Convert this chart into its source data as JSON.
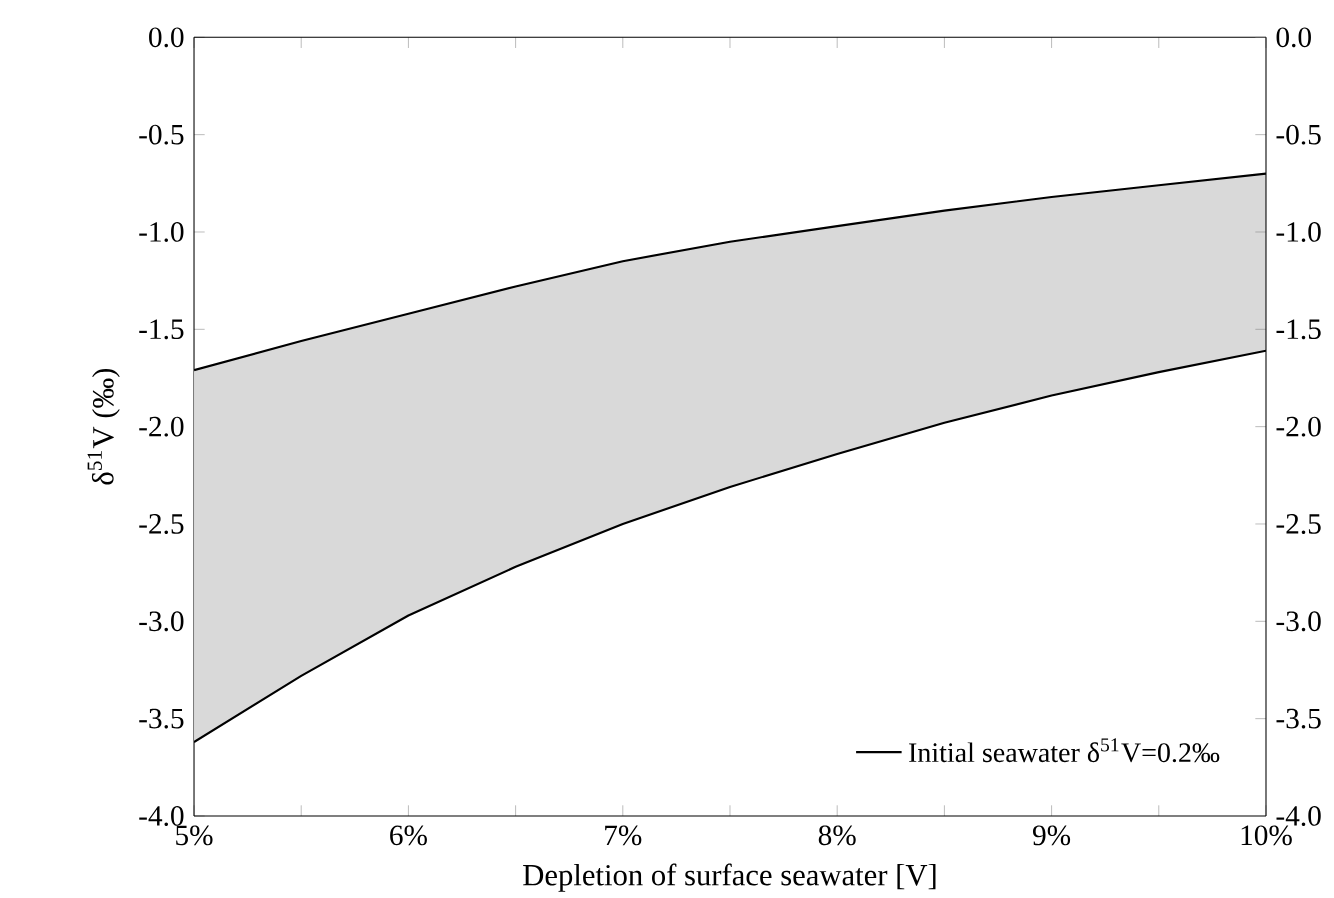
{
  "chart_data": {
    "type": "line",
    "xlabel": "Depletion of surface seawater [V]",
    "ylabel": "δ$^{51}$V (‰)",
    "x": [
      5,
      5.5,
      6,
      6.5,
      7,
      7.5,
      8,
      8.5,
      9,
      9.5,
      10
    ],
    "series": [
      {
        "name": "Initial seawater δ$^{51}$V=0.2‰",
        "color": "#000000",
        "values": [
          -1.71,
          -1.56,
          -1.42,
          -1.28,
          -1.15,
          -1.05,
          -0.97,
          -0.89,
          -0.82,
          -0.76,
          -0.7
        ],
        "lower": [
          -3.62,
          -3.28,
          -2.97,
          -2.72,
          -2.5,
          -2.31,
          -2.14,
          -1.98,
          -1.84,
          -1.72,
          -1.61
        ],
        "upper": [
          -1.71,
          -1.56,
          -1.42,
          -1.28,
          -1.15,
          -1.05,
          -0.97,
          -0.89,
          -0.82,
          -0.76,
          -0.7
        ]
      },
      {
        "color": "#000000",
        "values": [
          -3.62,
          -3.28,
          -2.97,
          -2.72,
          -2.5,
          -2.31,
          -2.14,
          -1.98,
          -1.84,
          -1.72,
          -1.61
        ]
      }
    ],
    "xlim": [
      5,
      10
    ],
    "xticks": [
      {
        "value": 5,
        "label": "5%"
      },
      {
        "value": 5.5,
        "label": null
      },
      {
        "value": 6,
        "label": "6%"
      },
      {
        "value": 6.5,
        "label": null
      },
      {
        "value": 7,
        "label": "7%"
      },
      {
        "value": 7.5,
        "label": null
      },
      {
        "value": 8,
        "label": "8%"
      },
      {
        "value": 8.5,
        "label": null
      },
      {
        "value": 9,
        "label": "9%"
      },
      {
        "value": 9.5,
        "label": null
      },
      {
        "value": 10,
        "label": "10%"
      }
    ],
    "ylim": [
      -4,
      0
    ],
    "yticks": [
      {
        "value": -4,
        "label": "-4.0"
      },
      {
        "value": -3.5,
        "label": "-3.5"
      },
      {
        "value": -3,
        "label": "-3.0"
      },
      {
        "value": -2.5,
        "label": "-2.5"
      },
      {
        "value": -2,
        "label": "-2.0"
      },
      {
        "value": -1.5,
        "label": "-1.5"
      },
      {
        "value": -1,
        "label": "-1.0"
      },
      {
        "value": -0.5,
        "label": "-0.5"
      },
      {
        "value": 0,
        "label": "0.0"
      }
    ],
    "y2lim": [
      -4,
      0
    ],
    "y2ticks": [
      {
        "value": -4,
        "label": "-4.0"
      },
      {
        "value": -3.5,
        "label": "-3.5"
      },
      {
        "value": -3,
        "label": "-3.0"
      },
      {
        "value": -2.5,
        "label": "-2.5"
      },
      {
        "value": -2,
        "label": "-2.0"
      },
      {
        "value": -1.5,
        "label": "-1.5"
      },
      {
        "value": -1,
        "label": "-1.0"
      },
      {
        "value": -0.5,
        "label": "-0.5"
      },
      {
        "value": 0,
        "label": "0.0"
      }
    ],
    "legend": "bottom right",
    "line_style": "solid"
  }
}
